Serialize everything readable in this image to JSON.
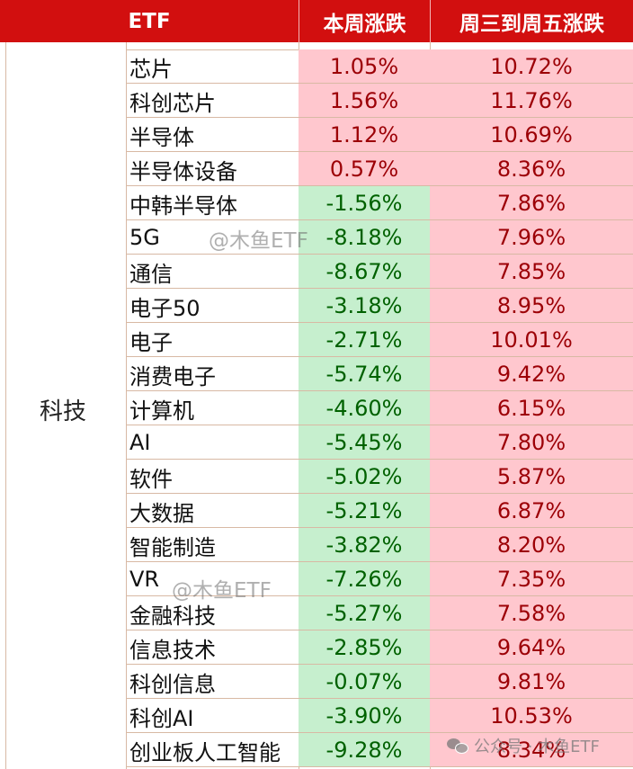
{
  "headers": {
    "etf": "ETF",
    "week_change": "本周涨跌",
    "wed_fri_change": "周三到周五涨跌"
  },
  "category": "科技",
  "rows": [
    {
      "name": "芯片",
      "week": "1.05%",
      "wedfri": "10.72%",
      "week_dir": "up"
    },
    {
      "name": "科创芯片",
      "week": "1.56%",
      "wedfri": "11.76%",
      "week_dir": "up"
    },
    {
      "name": "半导体",
      "week": "1.12%",
      "wedfri": "10.69%",
      "week_dir": "up"
    },
    {
      "name": "半导体设备",
      "week": "0.57%",
      "wedfri": "8.36%",
      "week_dir": "up"
    },
    {
      "name": "中韩半导体",
      "week": "-1.56%",
      "wedfri": "7.86%",
      "week_dir": "down"
    },
    {
      "name": "5G",
      "week": "-8.18%",
      "wedfri": "7.96%",
      "week_dir": "down"
    },
    {
      "name": "通信",
      "week": "-8.67%",
      "wedfri": "7.85%",
      "week_dir": "down"
    },
    {
      "name": "电子50",
      "week": "-3.18%",
      "wedfri": "8.95%",
      "week_dir": "down"
    },
    {
      "name": "电子",
      "week": "-2.71%",
      "wedfri": "10.01%",
      "week_dir": "down"
    },
    {
      "name": "消费电子",
      "week": "-5.74%",
      "wedfri": "9.42%",
      "week_dir": "down"
    },
    {
      "name": "计算机",
      "week": "-4.60%",
      "wedfri": "6.15%",
      "week_dir": "down"
    },
    {
      "name": "AI",
      "week": "-5.45%",
      "wedfri": "7.80%",
      "week_dir": "down"
    },
    {
      "name": "软件",
      "week": "-5.02%",
      "wedfri": "5.87%",
      "week_dir": "down"
    },
    {
      "name": "大数据",
      "week": "-5.21%",
      "wedfri": "6.87%",
      "week_dir": "down"
    },
    {
      "name": "智能制造",
      "week": "-3.82%",
      "wedfri": "8.20%",
      "week_dir": "down"
    },
    {
      "name": "VR",
      "week": "-7.26%",
      "wedfri": "7.35%",
      "week_dir": "down"
    },
    {
      "name": "金融科技",
      "week": "-5.27%",
      "wedfri": "7.58%",
      "week_dir": "down"
    },
    {
      "name": "信息技术",
      "week": "-2.85%",
      "wedfri": "9.64%",
      "week_dir": "down"
    },
    {
      "name": "科创信息",
      "week": "-0.07%",
      "wedfri": "9.81%",
      "week_dir": "down"
    },
    {
      "name": "科创AI",
      "week": "-3.90%",
      "wedfri": "10.53%",
      "week_dir": "down"
    },
    {
      "name": "创业板人工智能",
      "week": "-9.28%",
      "wedfri": "8.34%",
      "week_dir": "down"
    }
  ],
  "watermarks": [
    "@木鱼ETF",
    "@木鱼ETF"
  ],
  "footer_watermark": "公众号 · 木鱼ETF",
  "colors": {
    "header_bg": "#d20f0f",
    "up_bg": "#ffc7ce",
    "up_text": "#9c0006",
    "down_bg": "#c6efce",
    "down_text": "#006100"
  }
}
